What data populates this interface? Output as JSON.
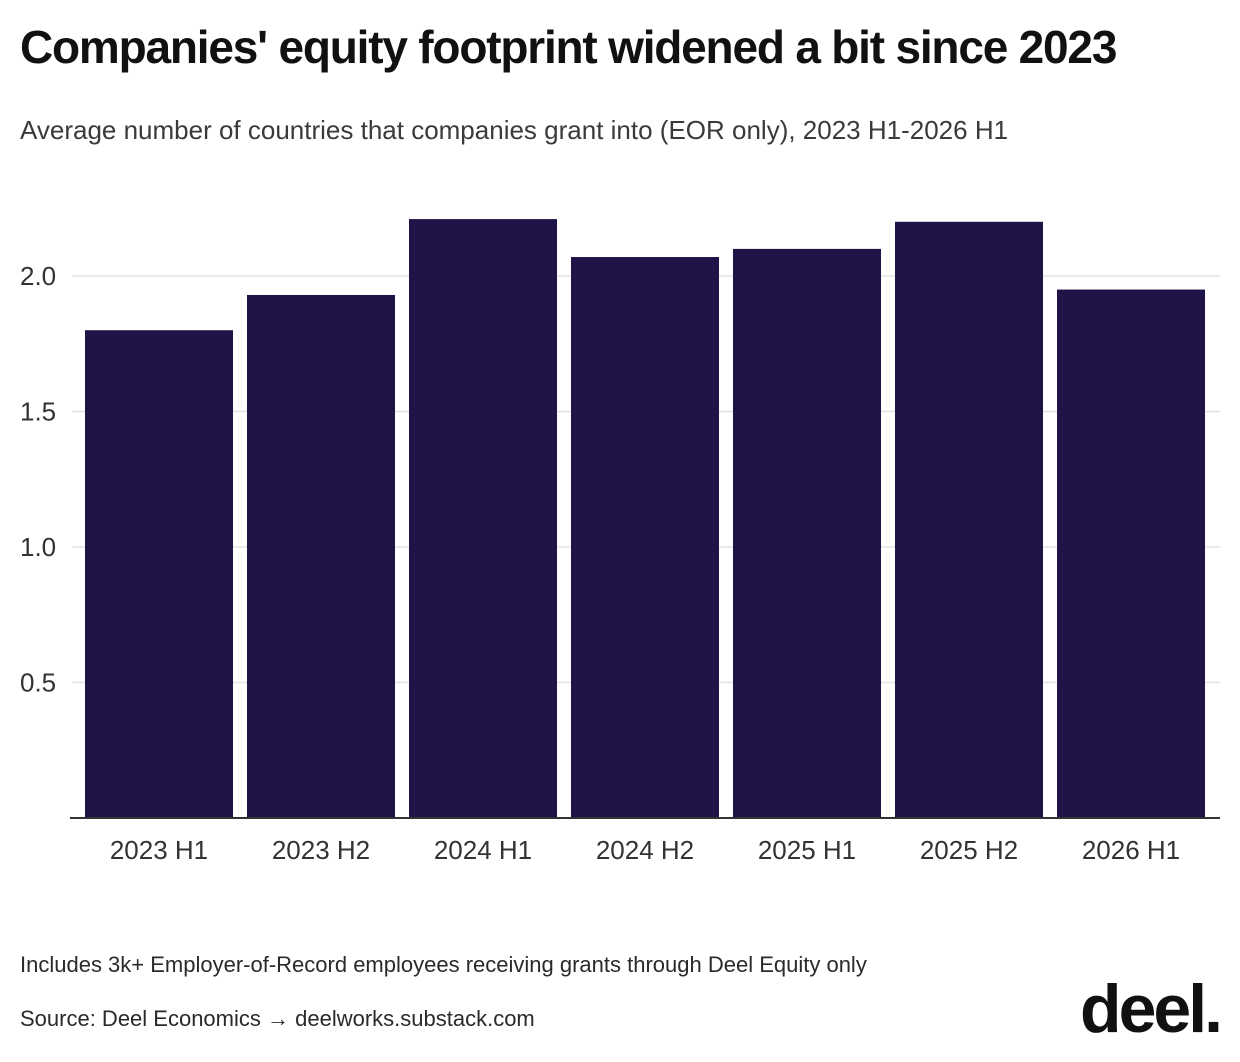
{
  "chart_data": {
    "type": "bar",
    "title": "Companies' equity footprint widened a bit since 2023",
    "subtitle": "Average number of countries that companies grant into (EOR only), 2023 H1-2026 H1",
    "categories": [
      "2023 H1",
      "2023 H2",
      "2024 H1",
      "2024 H2",
      "2025 H1",
      "2025 H2",
      "2026 H1"
    ],
    "values": [
      1.8,
      1.93,
      2.21,
      2.07,
      2.1,
      2.2,
      1.95
    ],
    "ylim": [
      0,
      2.3
    ],
    "yticks": [
      0.5,
      1.0,
      1.5,
      2.0
    ],
    "ytick_labels": [
      "0.5",
      "1.0",
      "1.5",
      "2.0"
    ],
    "xlabel": "",
    "ylabel": "",
    "grid": true,
    "bar_color": "#201347"
  },
  "footer": {
    "note": "Includes 3k+ Employer-of-Record employees receiving grants through Deel Equity only",
    "source": "Source: Deel Economics → deelworks.substack.com",
    "logo_text": "deel."
  }
}
